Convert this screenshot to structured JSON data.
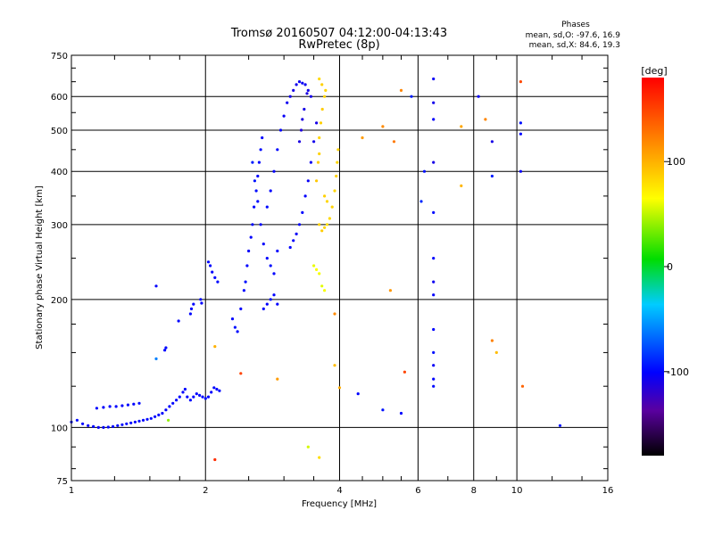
{
  "header": {
    "title_line1": "Tromsø 20160507 04:12:00-04:13:43",
    "title_line2": "RwPretec (8p)"
  },
  "phase_stats": {
    "heading": "Phases",
    "o_mode": "mean, sd,O: -97.6, 16.9",
    "x_mode": "mean, sd,X:  84.6, 19.3"
  },
  "colorbar": {
    "unit": "[deg]",
    "ticks": [
      "100",
      "0",
      "-100"
    ],
    "tick_values": [
      100,
      0,
      -100
    ],
    "range": [
      -180,
      180
    ]
  },
  "chart_data": {
    "type": "scatter",
    "xlabel": "Frequency [MHz]",
    "ylabel": "Stationary phase Virtual Height [km]",
    "xscale": "log",
    "yscale": "log",
    "xlim": [
      1,
      16
    ],
    "ylim": [
      75,
      750
    ],
    "xticks": [
      1,
      2,
      4,
      6,
      8,
      10,
      16
    ],
    "xtick_labels": [
      "1",
      "2",
      "4",
      "6",
      "8",
      "10",
      "16"
    ],
    "yticks": [
      75,
      100,
      200,
      300,
      400,
      500,
      600,
      750
    ],
    "ytick_labels": [
      "75",
      "100",
      "200",
      "300",
      "400",
      "500",
      "600",
      "750"
    ],
    "grid": true,
    "o_trace": [
      [
        1.0,
        103,
        -95
      ],
      [
        1.03,
        104,
        -98
      ],
      [
        1.06,
        102,
        -100
      ],
      [
        1.09,
        101,
        -102
      ],
      [
        1.12,
        100.5,
        -100
      ],
      [
        1.15,
        100,
        -103
      ],
      [
        1.18,
        100,
        -101
      ],
      [
        1.21,
        100.2,
        -99
      ],
      [
        1.24,
        100.5,
        -100
      ],
      [
        1.27,
        101,
        -98
      ],
      [
        1.3,
        101.5,
        -97
      ],
      [
        1.33,
        102,
        -99
      ],
      [
        1.36,
        102.5,
        -100
      ],
      [
        1.39,
        103,
        -101
      ],
      [
        1.42,
        103.5,
        -98
      ],
      [
        1.45,
        104,
        -100
      ],
      [
        1.48,
        104.5,
        -99
      ],
      [
        1.51,
        105,
        -97
      ],
      [
        1.54,
        106,
        -100
      ],
      [
        1.57,
        107,
        -98
      ],
      [
        1.6,
        108,
        -100
      ],
      [
        1.63,
        110,
        -102
      ],
      [
        1.66,
        112,
        -99
      ],
      [
        1.69,
        114,
        -100
      ],
      [
        1.72,
        116,
        -101
      ],
      [
        1.75,
        118,
        -98
      ],
      [
        1.78,
        121,
        -100
      ],
      [
        1.8,
        123,
        -99
      ],
      [
        1.82,
        118,
        -100
      ],
      [
        1.85,
        116,
        -98
      ],
      [
        1.88,
        118,
        -100
      ],
      [
        1.91,
        120,
        -101
      ],
      [
        1.94,
        119,
        -99
      ],
      [
        1.97,
        118,
        -100
      ],
      [
        2.0,
        117,
        -98
      ],
      [
        2.03,
        118,
        -100
      ],
      [
        2.06,
        121,
        -102
      ],
      [
        2.09,
        124,
        -99
      ],
      [
        2.12,
        123,
        -100
      ],
      [
        2.15,
        122,
        -98
      ]
    ],
    "o_upper_branch": [
      [
        1.14,
        111,
        -100
      ],
      [
        1.18,
        111.5,
        -102
      ],
      [
        1.22,
        112,
        -99
      ],
      [
        1.26,
        112,
        -100
      ],
      [
        1.3,
        112.5,
        -101
      ],
      [
        1.34,
        113,
        -99
      ],
      [
        1.38,
        113.5,
        -100
      ],
      [
        1.42,
        114,
        -98
      ]
    ],
    "o_steep_branch": [
      [
        1.55,
        215,
        -102
      ],
      [
        1.62,
        152,
        -100
      ],
      [
        1.63,
        154,
        -98
      ],
      [
        1.74,
        178,
        -100
      ],
      [
        1.85,
        185,
        -99
      ],
      [
        1.86,
        190,
        -102
      ],
      [
        1.88,
        195,
        -100
      ],
      [
        1.95,
        200,
        -98
      ],
      [
        1.96,
        196,
        -101
      ],
      [
        2.03,
        245,
        -100
      ],
      [
        2.05,
        240,
        -99
      ],
      [
        2.07,
        232,
        -102
      ],
      [
        2.1,
        225,
        -100
      ],
      [
        2.13,
        220,
        -98
      ]
    ],
    "o_f_region": [
      [
        2.3,
        180,
        -100
      ],
      [
        2.33,
        172,
        -95
      ],
      [
        2.36,
        168,
        -98
      ],
      [
        2.4,
        190,
        -102
      ],
      [
        2.44,
        210,
        -100
      ],
      [
        2.46,
        220,
        -96
      ],
      [
        2.48,
        240,
        -100
      ],
      [
        2.5,
        260,
        -103
      ],
      [
        2.53,
        280,
        -101
      ],
      [
        2.55,
        300,
        -99
      ],
      [
        2.57,
        330,
        -100
      ],
      [
        2.6,
        360,
        -97
      ],
      [
        2.62,
        390,
        -102
      ],
      [
        2.64,
        420,
        -100
      ],
      [
        2.66,
        450,
        -98
      ],
      [
        2.68,
        480,
        -100
      ],
      [
        2.55,
        420,
        -92
      ],
      [
        2.58,
        380,
        -95
      ],
      [
        2.62,
        340,
        -98
      ],
      [
        2.66,
        300,
        -100
      ],
      [
        2.7,
        270,
        -102
      ],
      [
        2.75,
        250,
        -100
      ],
      [
        2.8,
        240,
        -97
      ],
      [
        2.85,
        230,
        -100
      ],
      [
        2.9,
        260,
        -101
      ],
      [
        2.75,
        330,
        -98
      ],
      [
        2.8,
        360,
        -100
      ],
      [
        2.85,
        400,
        -102
      ],
      [
        2.9,
        450,
        -99
      ],
      [
        2.95,
        500,
        -101
      ],
      [
        3.0,
        540,
        -104
      ],
      [
        3.05,
        580,
        -106
      ],
      [
        3.1,
        600,
        -108
      ],
      [
        3.15,
        620,
        -110
      ],
      [
        3.2,
        640,
        -108
      ],
      [
        3.25,
        650,
        -106
      ],
      [
        3.3,
        645,
        -104
      ],
      [
        3.35,
        640,
        -106
      ],
      [
        3.4,
        620,
        -108
      ],
      [
        3.45,
        600,
        -110
      ],
      [
        3.1,
        265,
        -100
      ],
      [
        3.15,
        275,
        -102
      ],
      [
        3.2,
        285,
        -104
      ],
      [
        3.25,
        300,
        -102
      ],
      [
        3.3,
        320,
        -100
      ],
      [
        3.35,
        350,
        -102
      ],
      [
        3.4,
        380,
        -104
      ],
      [
        3.45,
        420,
        -106
      ],
      [
        3.5,
        470,
        -108
      ],
      [
        3.55,
        520,
        -110
      ],
      [
        2.7,
        190,
        -100
      ],
      [
        2.75,
        195,
        -102
      ],
      [
        2.8,
        200,
        -98
      ],
      [
        2.85,
        205,
        -100
      ],
      [
        2.9,
        195,
        -101
      ],
      [
        3.25,
        470,
        -112
      ],
      [
        3.28,
        500,
        -114
      ],
      [
        3.3,
        530,
        -112
      ],
      [
        3.33,
        560,
        -110
      ],
      [
        3.38,
        610,
        -112
      ]
    ],
    "x_f_region": [
      [
        3.6,
        300,
        85
      ],
      [
        3.65,
        290,
        88
      ],
      [
        3.7,
        295,
        84
      ],
      [
        3.75,
        300,
        80
      ],
      [
        3.8,
        310,
        82
      ],
      [
        3.85,
        330,
        85
      ],
      [
        3.9,
        360,
        84
      ],
      [
        3.93,
        390,
        86
      ],
      [
        3.95,
        420,
        83
      ],
      [
        3.97,
        450,
        85
      ],
      [
        3.6,
        480,
        84
      ],
      [
        3.63,
        520,
        86
      ],
      [
        3.66,
        560,
        88
      ],
      [
        3.7,
        600,
        85
      ],
      [
        3.72,
        620,
        84
      ],
      [
        3.55,
        380,
        90
      ],
      [
        3.58,
        420,
        88
      ],
      [
        3.6,
        440,
        85
      ],
      [
        3.7,
        350,
        86
      ],
      [
        3.75,
        340,
        83
      ],
      [
        3.5,
        240,
        60
      ],
      [
        3.55,
        235,
        64
      ],
      [
        3.6,
        230,
        62
      ],
      [
        3.65,
        215,
        58
      ],
      [
        3.7,
        210,
        63
      ],
      [
        3.6,
        660,
        82
      ],
      [
        3.65,
        640,
        86
      ]
    ],
    "scattered_echoes": [
      [
        4.5,
        480,
        110
      ],
      [
        5.0,
        510,
        118
      ],
      [
        5.2,
        210,
        112
      ],
      [
        5.3,
        470,
        125
      ],
      [
        5.5,
        620,
        120
      ],
      [
        5.8,
        600,
        -92
      ],
      [
        6.1,
        340,
        -88
      ],
      [
        6.2,
        400,
        -96
      ],
      [
        6.5,
        660,
        -104
      ],
      [
        6.5,
        580,
        -108
      ],
      [
        6.5,
        530,
        -102
      ],
      [
        6.5,
        420,
        -110
      ],
      [
        6.5,
        320,
        -98
      ],
      [
        6.5,
        250,
        -100
      ],
      [
        6.5,
        220,
        -106
      ],
      [
        6.5,
        205,
        -102
      ],
      [
        6.5,
        170,
        -100
      ],
      [
        6.5,
        150,
        -96
      ],
      [
        6.5,
        140,
        -104
      ],
      [
        6.5,
        130,
        -100
      ],
      [
        6.5,
        125,
        -98
      ],
      [
        7.5,
        510,
        105
      ],
      [
        7.5,
        370,
        98
      ],
      [
        8.2,
        600,
        -104
      ],
      [
        8.5,
        530,
        120
      ],
      [
        8.8,
        470,
        -110
      ],
      [
        8.8,
        390,
        -92
      ],
      [
        8.8,
        160,
        122
      ],
      [
        9.0,
        150,
        95
      ],
      [
        10.2,
        650,
        148
      ],
      [
        10.2,
        520,
        -96
      ],
      [
        10.2,
        490,
        -100
      ],
      [
        10.2,
        400,
        -104
      ],
      [
        10.3,
        125,
        135
      ],
      [
        12.5,
        101,
        -95
      ],
      [
        4.0,
        124,
        102
      ],
      [
        4.4,
        120,
        -100
      ],
      [
        5.0,
        110,
        -95
      ],
      [
        5.5,
        108,
        -100
      ],
      [
        5.6,
        135,
        150
      ],
      [
        2.1,
        84,
        160
      ],
      [
        2.1,
        155,
        100
      ],
      [
        2.4,
        134,
        150
      ],
      [
        2.9,
        130,
        110
      ],
      [
        3.4,
        90,
        55
      ],
      [
        3.6,
        85,
        80
      ],
      [
        3.9,
        185,
        118
      ],
      [
        3.9,
        140,
        95
      ],
      [
        1.55,
        145,
        -60
      ],
      [
        1.65,
        104,
        40
      ]
    ]
  }
}
